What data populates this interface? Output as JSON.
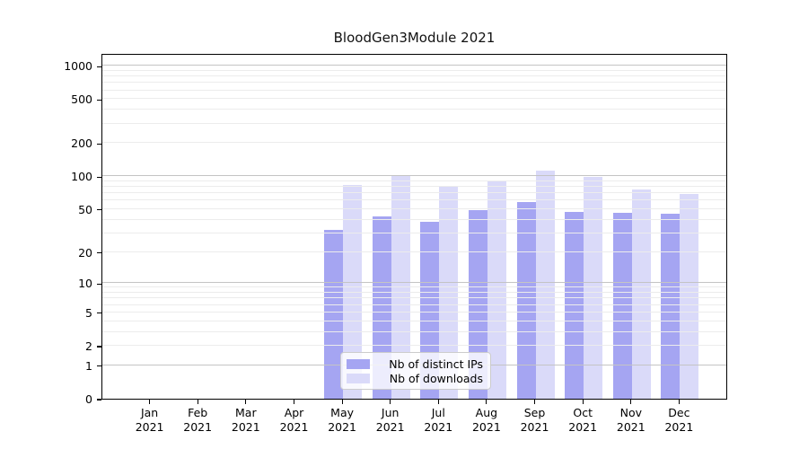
{
  "chart_data": {
    "type": "bar",
    "title": "BloodGen3Module 2021",
    "x_months": [
      "Jan",
      "Feb",
      "Mar",
      "Apr",
      "May",
      "Jun",
      "Jul",
      "Aug",
      "Sep",
      "Oct",
      "Nov",
      "Dec"
    ],
    "x_year": "2021",
    "series": [
      {
        "name": "Nb of distinct IPs",
        "color": "#a5a5f2",
        "values": [
          0,
          0,
          0,
          0,
          32,
          43,
          38,
          49,
          58,
          47,
          46,
          45
        ]
      },
      {
        "name": "Nb of downloads",
        "color": "#dadaf9",
        "values": [
          0,
          0,
          0,
          0,
          83,
          103,
          81,
          92,
          112,
          99,
          76,
          69
        ]
      }
    ],
    "yscale": "log1p",
    "ylim": [
      0,
      1300
    ],
    "yticks_labeled": [
      0,
      1,
      2,
      5,
      10,
      20,
      50,
      100,
      200,
      500,
      1000
    ],
    "yticks_major_grid": [
      1,
      10,
      100,
      1000
    ],
    "yticks_minor_grid": [
      2,
      3,
      4,
      5,
      6,
      7,
      8,
      9,
      20,
      30,
      40,
      50,
      60,
      70,
      80,
      90,
      200,
      300,
      400,
      500,
      600,
      700,
      800,
      900
    ],
    "grid": true,
    "legend_position": "inside-lower-center"
  },
  "legend": {
    "items": [
      {
        "label": "Nb of distinct IPs",
        "color": "#a5a5f2"
      },
      {
        "label": "Nb of downloads",
        "color": "#dadaf9"
      }
    ]
  },
  "colors": {
    "major_grid": "#c4c4c4",
    "minor_grid": "#ececec",
    "spine": "#000000",
    "text": "#000000",
    "legend_border": "#cccccc"
  }
}
